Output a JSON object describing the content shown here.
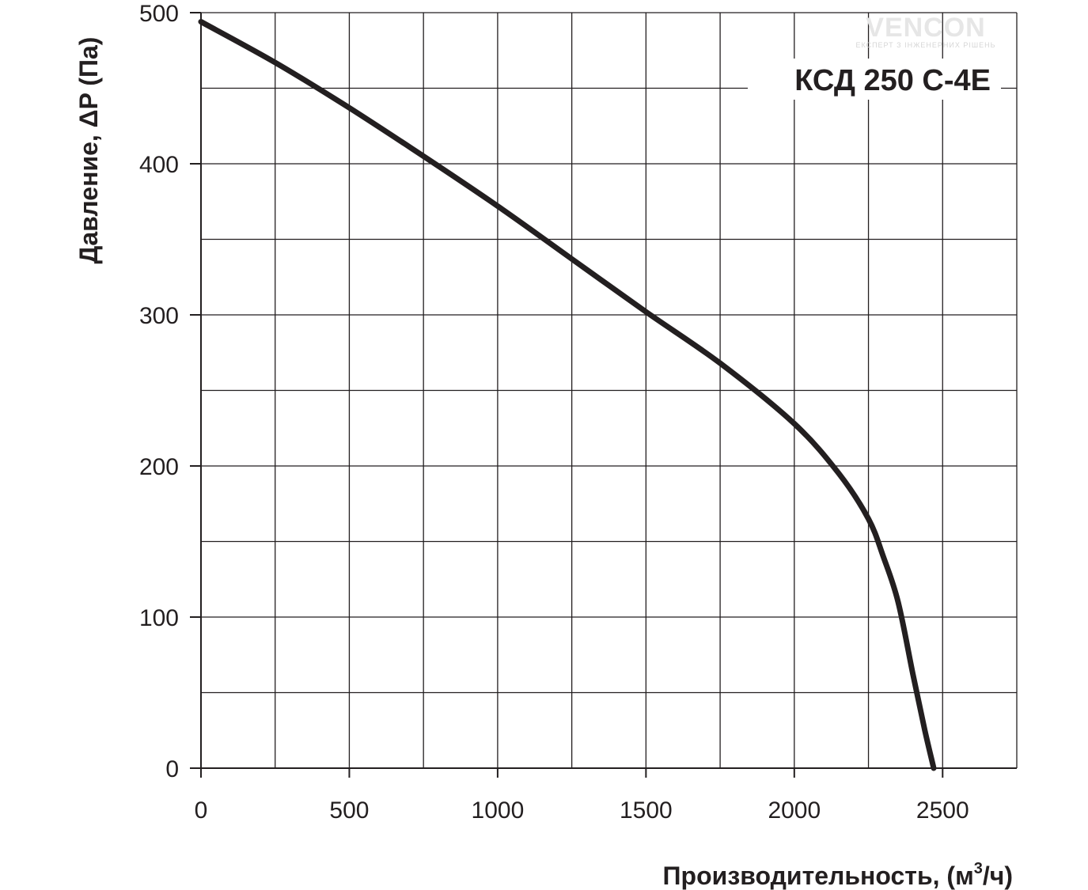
{
  "colors": {
    "grid": "#231f20",
    "curve": "#231f20",
    "text": "#231f20",
    "background": "#ffffff",
    "logo": "#e6e6e6"
  },
  "logo": {
    "name": "VENCON",
    "tagline": "ЕКСПЕРТ З ІНЖЕНЕРНИХ РІШЕНЬ"
  },
  "chart_data": {
    "type": "line",
    "title": "КСД 250 С-4Е",
    "xlabel_main": "Производительность, (м",
    "xlabel_sup": "3",
    "xlabel_tail": "/ч)",
    "ylabel": "Давление, ΔP (Па)",
    "xlim": [
      0,
      2750
    ],
    "ylim": [
      0,
      500
    ],
    "x_ticks": [
      0,
      500,
      1000,
      1500,
      2000,
      2500
    ],
    "y_ticks": [
      0,
      100,
      200,
      300,
      400,
      500
    ],
    "x_grid_step": 250,
    "y_grid_step": 50,
    "grid": true,
    "series": [
      {
        "x": [
          0,
          250,
          500,
          750,
          1000,
          1250,
          1500,
          1750,
          2000,
          2150,
          2250,
          2300,
          2350,
          2400,
          2440,
          2470
        ],
        "y": [
          494,
          467,
          437,
          405,
          372,
          337,
          302,
          268,
          228,
          195,
          165,
          140,
          110,
          62,
          25,
          0
        ]
      }
    ]
  }
}
